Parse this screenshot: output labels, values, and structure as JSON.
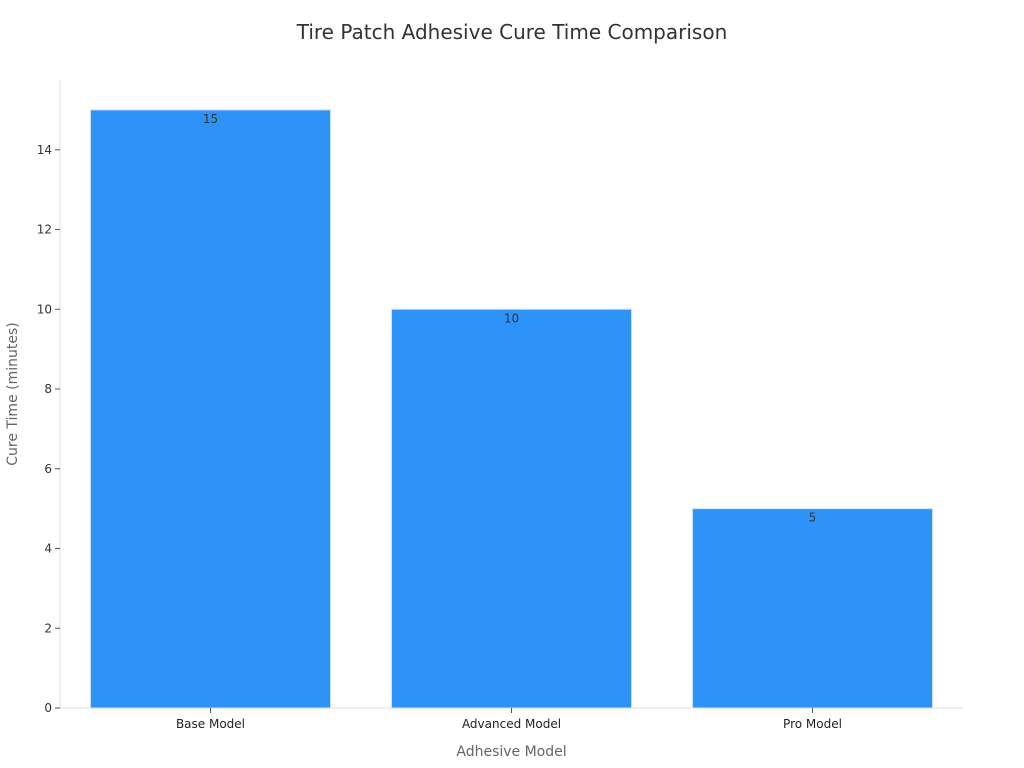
{
  "chart_data": {
    "type": "bar",
    "title": "Tire Patch Adhesive Cure Time Comparison",
    "xlabel": "Adhesive Model",
    "ylabel": "Cure Time (minutes)",
    "categories": [
      "Base Model",
      "Advanced Model",
      "Pro Model"
    ],
    "values": [
      15,
      10,
      5
    ],
    "data_labels": [
      "15",
      "10",
      "5"
    ],
    "ylim": [
      0,
      15.75
    ],
    "yticks": [
      0,
      2,
      4,
      6,
      8,
      10,
      12,
      14
    ],
    "grid": false,
    "bar_color": "#2e93f9",
    "bar_edge_color": "#c9e2fb"
  }
}
